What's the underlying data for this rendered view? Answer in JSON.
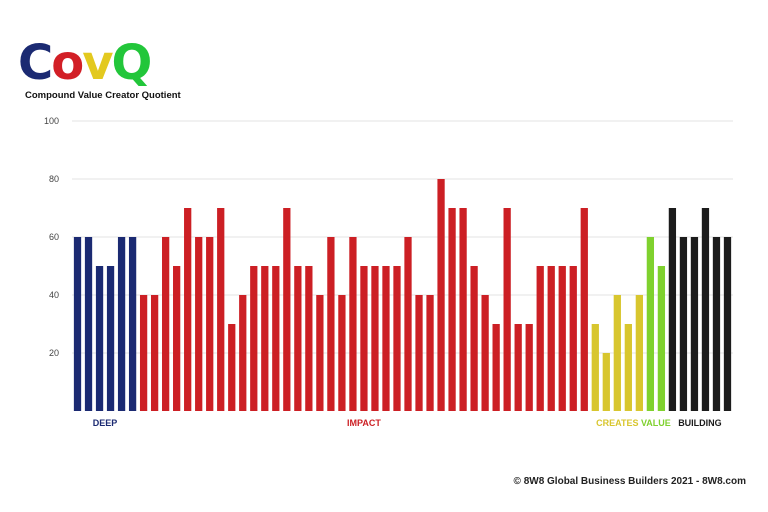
{
  "logo": {
    "letters": [
      {
        "char": "C",
        "color": "#1b2a72"
      },
      {
        "char": "o",
        "color": "#d21f26"
      },
      {
        "char": "v",
        "color": "#e3c91f"
      },
      {
        "char": "Q",
        "color": "#22c63a"
      }
    ],
    "subtitle": "Compound Value Creator Quotient"
  },
  "copyright": "© 8W8 Global Business Builders 2021 - 8W8.com",
  "colors": {
    "deep": "#1b2a72",
    "impact": "#cc1f24",
    "creates": "#d8c62e",
    "value": "#7fd12e",
    "building": "#1c1c1c",
    "grid": "#e3e3e3",
    "axis_text": "#444444"
  },
  "chart_data": {
    "type": "bar",
    "title": "",
    "xlabel": "",
    "ylabel": "",
    "ylim": [
      0,
      100
    ],
    "yticks": [
      20,
      40,
      60,
      80,
      100
    ],
    "grid": true,
    "groups": [
      {
        "name": "DEEP",
        "color_key": "deep",
        "values": [
          60,
          60,
          50,
          50,
          60,
          60
        ]
      },
      {
        "name": "IMPACT",
        "color_key": "impact",
        "values": [
          40,
          40,
          60,
          50,
          70,
          60,
          60,
          70,
          30,
          40,
          50,
          50,
          50,
          70,
          50,
          50,
          40,
          60,
          40,
          60,
          50,
          50,
          50,
          50,
          60,
          40,
          40,
          80,
          70,
          70,
          50,
          40,
          30,
          70,
          30,
          30,
          50,
          50,
          50,
          50,
          70
        ]
      },
      {
        "name": "CREATES",
        "color_key": "creates",
        "values": [
          30,
          20,
          40,
          30,
          40
        ]
      },
      {
        "name": "VALUE",
        "color_key": "value",
        "values": [
          60,
          50
        ]
      },
      {
        "name": "BUILDING",
        "color_key": "building",
        "values": [
          70,
          60,
          60,
          70,
          60,
          60
        ]
      }
    ]
  }
}
